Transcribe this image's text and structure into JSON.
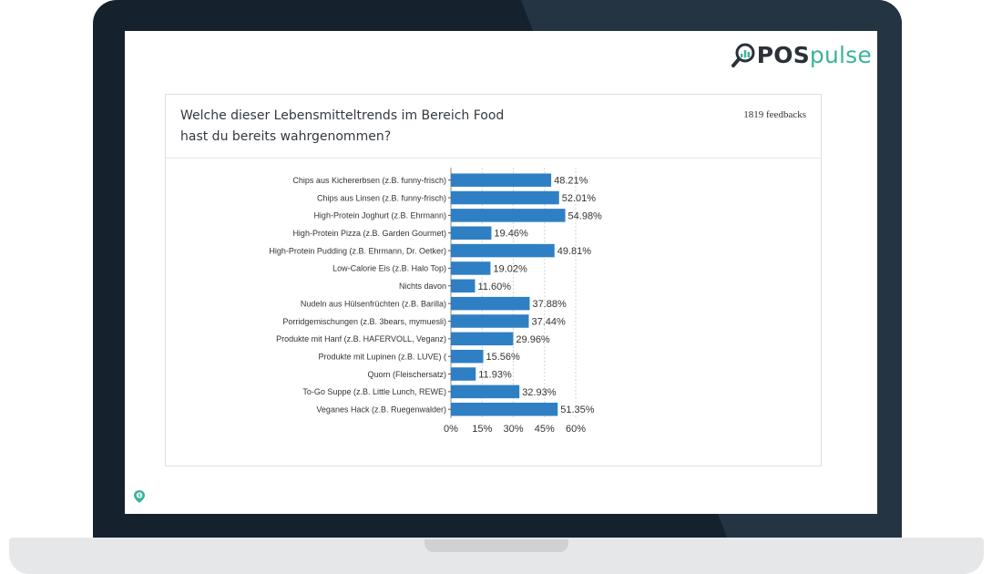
{
  "card": {
    "question_line1": "Welche dieser Lebensmitteltrends im Bereich Food",
    "question_line2": "hast du bereits wahrgenommen?",
    "feedbacks": "1819 feedbacks"
  },
  "logo": {
    "pos": "POS",
    "pulse": "pulse",
    "icon": "magnifier-chart-icon"
  },
  "colors": {
    "bar": "#2f7fc4",
    "brand_green": "#3ab39b",
    "frame": "#15222e"
  },
  "chart_data": {
    "type": "bar",
    "orientation": "horizontal",
    "categories": [
      "Chips aus Kichererbsen (z.B. funny-frisch)",
      "Chips aus Linsen (z.B. funny-frisch)",
      "High-Protein Joghurt (z.B. Ehrmann)",
      "High-Protein Pizza (z.B. Garden Gourmet)",
      "High-Protein Pudding (z.B. Ehrmann, Dr. Oetker)",
      "Low-Calorie Eis (z.B. Halo Top)",
      "Nichts davon",
      "Nudeln aus Hülsenfrüchten (z.B. Barilla)",
      "Porridgemischungen (z.B. 3bears, mymuesli)",
      "Produkte mit Hanf (z.B. HAFERVOLL, Veganz)",
      "Produkte mit Lupinen (z.B. LUVE) (",
      "Quorn (Fleischersatz)",
      "To-Go Suppe (z.B. Little Lunch, REWE)",
      "Veganes Hack (z.B. Ruegenwalder)"
    ],
    "values": [
      48.21,
      52.01,
      54.98,
      19.46,
      49.81,
      19.02,
      11.6,
      37.88,
      37.44,
      29.96,
      15.56,
      11.93,
      32.93,
      51.35
    ],
    "value_labels": [
      "48.21%",
      "52.01%",
      "54.98%",
      "19.46%",
      "49.81%",
      "19.02%",
      "11.60%",
      "37.88%",
      "37.44%",
      "29.96%",
      "15.56%",
      "11.93%",
      "32.93%",
      "51.35%"
    ],
    "xticks": [
      "0%",
      "15%",
      "30%",
      "45%",
      "60%"
    ],
    "xtick_values": [
      0,
      15,
      30,
      45,
      60
    ],
    "xlim": [
      0,
      60
    ],
    "grid": true
  }
}
